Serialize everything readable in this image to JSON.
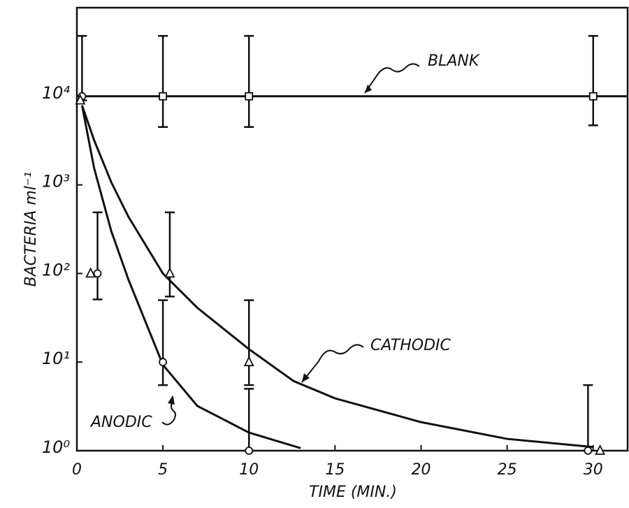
{
  "chart_data": {
    "type": "scatter",
    "xlabel": "TIME  (MIN.)",
    "ylabel": "BACTERIA ml⁻¹",
    "log_y": true,
    "color": "#111111",
    "xlim": [
      0,
      32
    ],
    "xticks": [
      0,
      5,
      10,
      15,
      20,
      25,
      30
    ],
    "ylim": [
      1,
      100000
    ],
    "yticks": [
      {
        "value": 1,
        "label": "10⁰"
      },
      {
        "value": 10,
        "label": "10¹"
      },
      {
        "value": 100,
        "label": "10²"
      },
      {
        "value": 1000,
        "label": "10³"
      },
      {
        "value": 10000,
        "label": "10⁴"
      }
    ],
    "series": [
      {
        "name": "BLANK",
        "marker": "square",
        "x": [
          5,
          10,
          30
        ],
        "values": [
          10000,
          10000,
          10000
        ],
        "lower": [
          4500,
          4500,
          4700
        ],
        "upper": [
          48000,
          48000,
          48000
        ],
        "fit_x": [
          0,
          32
        ],
        "fit_values": [
          10000,
          10000
        ]
      },
      {
        "name": "ANODIC",
        "marker": "circle",
        "x": [
          0.3,
          1.2,
          5,
          10,
          29.7
        ],
        "values": [
          10000,
          100,
          10,
          1,
          1
        ],
        "lower": [
          9000,
          51,
          5.5,
          1,
          1
        ],
        "upper": [
          48000,
          490,
          50,
          5,
          5.5
        ],
        "fit_x": [
          0.3,
          1,
          2,
          3,
          5,
          7,
          10,
          13
        ],
        "fit_values": [
          7900,
          1550,
          300,
          85,
          9.3,
          3.2,
          1.6,
          1.07
        ]
      },
      {
        "name": "CATHODIC",
        "marker": "triangle",
        "x": [
          0.2,
          0.8,
          5.4,
          10,
          30.4
        ],
        "values": [
          9000,
          100,
          100,
          10,
          1
        ],
        "lower": [
          null,
          null,
          55,
          5.5,
          null
        ],
        "upper": [
          null,
          null,
          490,
          50,
          null
        ],
        "fit_x": [
          0.3,
          1,
          2,
          3,
          5,
          7,
          10,
          12.6,
          15,
          20,
          25,
          30
        ],
        "fit_values": [
          7900,
          3200,
          1070,
          435,
          100,
          41,
          14,
          6.1,
          3.9,
          2.1,
          1.36,
          1.1
        ]
      }
    ]
  }
}
